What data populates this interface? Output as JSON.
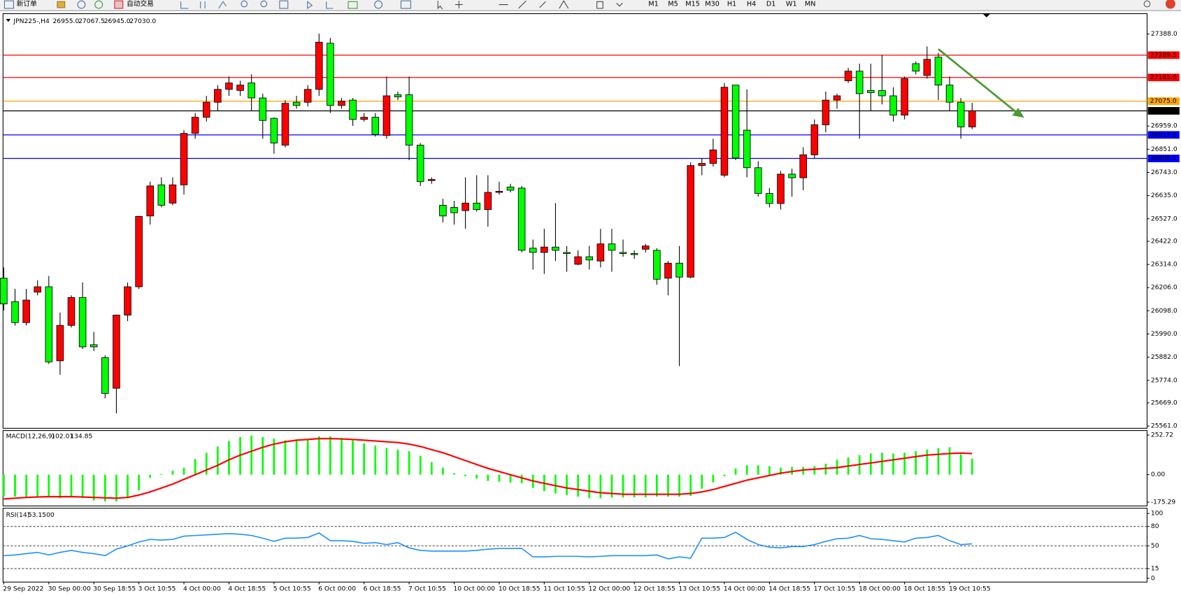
{
  "toolbar": {
    "buttons": [
      "新订单",
      "自动交易"
    ],
    "timeframes": [
      "M1",
      "M5",
      "M15",
      "M30",
      "H1",
      "H4",
      "D1",
      "W1",
      "MN"
    ]
  },
  "chart_data": [
    {
      "type": "candlestick",
      "title": "JPN225-,H4",
      "header_values": [
        {
          "value": 26955,
          "label": "26955.0"
        },
        {
          "value": 27067.5,
          "label": "27067.5"
        },
        {
          "value": 26945,
          "label": "26945.0"
        },
        {
          "value": 27030,
          "label": "27030.0"
        }
      ],
      "categories": [
        "29 Sep 2022",
        null,
        null,
        null,
        "30 Sep 00:00",
        null,
        null,
        null,
        "30 Sep 18:55",
        null,
        null,
        null,
        "3 Oct 10:55",
        null,
        null,
        null,
        "4 Oct 00:00",
        null,
        null,
        null,
        "4 Oct 18:55",
        null,
        null,
        null,
        "5 Oct 10:55",
        null,
        null,
        null,
        "6 Oct 00:00",
        null,
        null,
        null,
        "6 Oct 18:55",
        null,
        null,
        null,
        "7 Oct 10:55",
        null,
        null,
        null,
        "10 Oct 00:00",
        null,
        null,
        null,
        "10 Oct 18:55",
        null,
        null,
        null,
        "11 Oct 10:55",
        null,
        null,
        null,
        "12 Oct 00:00",
        null,
        null,
        null,
        "12 Oct 18:55",
        null,
        null,
        null,
        "13 Oct 10:55",
        null,
        null,
        null,
        "14 Oct 00:00",
        null,
        null,
        null,
        "14 Oct 18:55",
        null,
        null,
        null,
        "17 Oct 10:55",
        null,
        null,
        null,
        "18 Oct 00:00",
        null,
        null,
        null,
        "18 Oct 18:55",
        null,
        null,
        null,
        "19 Oct 10:55",
        null,
        null
      ],
      "open": [
        26250,
        26141,
        26043,
        26185,
        26210,
        25865,
        26030,
        26160,
        25940,
        25880,
        25737,
        26078,
        26210,
        26540,
        26685,
        26600,
        26685,
        26925,
        27000,
        27070,
        27130,
        27125,
        27160,
        27090,
        26995,
        26870,
        27070,
        27070,
        27130,
        27345,
        27055,
        27080,
        26990,
        27000,
        26915,
        27105,
        27105,
        26870,
        26705,
        26590,
        26580,
        26565,
        26600,
        26570,
        26650,
        26675,
        26670,
        26390,
        26370,
        26395,
        26370,
        26315,
        26350,
        26330,
        26410,
        26370,
        26365,
        26385,
        26380,
        26250,
        26320,
        26255,
        26775,
        26785,
        26730,
        27150,
        26940,
        26765,
        26645,
        26598,
        26735,
        26718,
        26825,
        26965,
        27080,
        27170,
        27215,
        27125,
        27125,
        27100,
        27010,
        27250,
        27195,
        27280,
        27150,
        27070,
        26955
      ],
      "high": [
        26300,
        26200,
        26200,
        26240,
        26260,
        26090,
        26170,
        26230,
        26000,
        25890,
        26080,
        26230,
        26540,
        26700,
        26720,
        26720,
        26940,
        27020,
        27100,
        27150,
        27190,
        27170,
        27200,
        27110,
        27000,
        27080,
        27100,
        27150,
        27390,
        27370,
        27090,
        27090,
        27020,
        27020,
        27190,
        27120,
        27190,
        26880,
        26720,
        26620,
        26610,
        26720,
        26730,
        26730,
        26700,
        26690,
        26680,
        26430,
        26480,
        26600,
        26400,
        26380,
        26400,
        26480,
        26480,
        26430,
        26380,
        26410,
        26390,
        26330,
        26400,
        26790,
        26810,
        26900,
        27160,
        27150,
        27130,
        26795,
        26670,
        26750,
        26760,
        26860,
        26990,
        27120,
        27110,
        27230,
        27250,
        27250,
        27290,
        27140,
        27190,
        27260,
        27330,
        27300,
        27190,
        27090,
        27067.5
      ],
      "low": [
        26100,
        26029,
        26030,
        26170,
        25850,
        25800,
        26020,
        25920,
        25910,
        25690,
        25620,
        26050,
        26200,
        26500,
        26580,
        26590,
        26640,
        26900,
        26980,
        27030,
        27100,
        27100,
        27030,
        26900,
        26830,
        26860,
        27040,
        27050,
        27100,
        27020,
        27040,
        26960,
        26980,
        26910,
        26900,
        27080,
        26800,
        26680,
        26690,
        26510,
        26500,
        26480,
        26560,
        26490,
        26640,
        26650,
        26370,
        26290,
        26270,
        26330,
        26280,
        26310,
        26290,
        26300,
        26280,
        26350,
        26340,
        26370,
        26220,
        26170,
        25840,
        26250,
        26730,
        26770,
        26720,
        26800,
        26720,
        26630,
        26580,
        26570,
        26630,
        26660,
        26810,
        26930,
        27040,
        27160,
        26900,
        27030,
        27060,
        26980,
        26990,
        27200,
        27180,
        27080,
        27030,
        26900,
        26945
      ],
      "close": [
        26130,
        26043,
        26148,
        26210,
        25860,
        26030,
        26160,
        25930,
        25930,
        25713,
        26078,
        26210,
        26538,
        26680,
        26590,
        26685,
        26925,
        27000,
        27070,
        27130,
        27160,
        27150,
        27090,
        26985,
        26880,
        27065,
        27055,
        27130,
        27350,
        27055,
        27075,
        26990,
        27000,
        26920,
        27100,
        27095,
        26870,
        26700,
        26710,
        26540,
        26555,
        26600,
        26570,
        26650,
        26655,
        26660,
        26380,
        26370,
        26395,
        26380,
        26365,
        26350,
        26335,
        26410,
        26380,
        26365,
        26360,
        26400,
        26245,
        26320,
        26255,
        26775,
        26785,
        26848,
        27140,
        26810,
        26765,
        26645,
        26598,
        26735,
        26718,
        26825,
        26965,
        27080,
        27100,
        27215,
        27110,
        27115,
        27100,
        27010,
        27180,
        27215,
        27270,
        27150,
        27070,
        26955,
        27030
      ],
      "up_color": "#ff0000",
      "down_color": "#00ff00",
      "ylim": [
        25561,
        27388
      ],
      "yticks": [
        {
          "value": 27388,
          "label": "27388.0"
        },
        {
          "value": 26959,
          "label": "26959.0"
        },
        {
          "value": 26851,
          "label": "26851.0"
        },
        {
          "value": 26743,
          "label": "26743.0"
        },
        {
          "value": 26635,
          "label": "26635.0"
        },
        {
          "value": 26527,
          "label": "26527.0"
        },
        {
          "value": 26422,
          "label": "26422.0"
        },
        {
          "value": 26314,
          "label": "26314.0"
        },
        {
          "value": 26206,
          "label": "26206.0"
        },
        {
          "value": 26098,
          "label": "26098.0"
        },
        {
          "value": 25990,
          "label": "25990.0"
        },
        {
          "value": 25882,
          "label": "25882.0"
        },
        {
          "value": 25774,
          "label": "25774.0"
        },
        {
          "value": 25669,
          "label": "25669.0"
        },
        {
          "value": 25561,
          "label": "25561.0"
        }
      ],
      "hlines": [
        {
          "value": 27289.5,
          "label": "27289.5",
          "color": "#ff0000"
        },
        {
          "value": 27185.6,
          "label": "27185.6",
          "color": "#ff0000"
        },
        {
          "value": 27075,
          "label": "27075.0",
          "color": "#ffa500"
        },
        {
          "value": 27030,
          "label": "27030.0",
          "color": "#000000"
        },
        {
          "value": 26917.8,
          "label": "26917.8",
          "color": "#0000ff"
        },
        {
          "value": 26808.1,
          "label": "26808.1",
          "color": "#0000ff"
        }
      ]
    },
    {
      "type": "macd",
      "title": "MACD(12,26,9)",
      "header_values": [
        {
          "value": 102.01,
          "label": "102.01"
        },
        {
          "value": 134.85,
          "label": "134.85"
        }
      ],
      "ylim": [
        -175.29,
        252.72
      ],
      "yticks": [
        {
          "value": 252.72,
          "label": "252.72"
        },
        {
          "value": 0,
          "label": "0.00"
        },
        {
          "value": -175.29,
          "label": "-175.29"
        }
      ],
      "series": [
        {
          "kind": "bar",
          "color": "#00ff00",
          "values": [
            -140,
            -140,
            -140,
            -140,
            -145,
            -150,
            -145,
            -150,
            -165,
            -170,
            -170,
            -150,
            -100,
            -20,
            5,
            25,
            45,
            100,
            140,
            180,
            215,
            240,
            250,
            240,
            230,
            220,
            215,
            225,
            245,
            245,
            235,
            220,
            200,
            185,
            170,
            160,
            150,
            120,
            80,
            45,
            10,
            -10,
            -25,
            -40,
            -45,
            -50,
            -55,
            -85,
            -105,
            -120,
            -130,
            -140,
            -150,
            -150,
            -145,
            -145,
            -145,
            -145,
            -140,
            -140,
            -140,
            -135,
            -90,
            -50,
            -10,
            40,
            60,
            60,
            55,
            45,
            50,
            50,
            55,
            70,
            95,
            110,
            125,
            135,
            140,
            135,
            140,
            150,
            160,
            170,
            175,
            130,
            102.01
          ]
        },
        {
          "kind": "line",
          "color": "#ff0000",
          "values": [
            -155,
            -150,
            -145,
            -142,
            -140,
            -140,
            -140,
            -142,
            -145,
            -148,
            -150,
            -145,
            -130,
            -110,
            -85,
            -60,
            -30,
            0,
            30,
            60,
            95,
            125,
            150,
            175,
            195,
            210,
            220,
            225,
            230,
            230,
            228,
            225,
            220,
            215,
            210,
            205,
            195,
            180,
            160,
            140,
            115,
            90,
            65,
            40,
            20,
            0,
            -20,
            -40,
            -55,
            -70,
            -85,
            -95,
            -105,
            -115,
            -120,
            -125,
            -125,
            -125,
            -125,
            -125,
            -125,
            -120,
            -110,
            -95,
            -75,
            -55,
            -35,
            -20,
            -5,
            10,
            20,
            30,
            35,
            40,
            45,
            55,
            65,
            75,
            85,
            95,
            105,
            115,
            125,
            130,
            135,
            138,
            134.85
          ]
        }
      ]
    },
    {
      "type": "line",
      "title": "RSI(14)",
      "header_values": [
        {
          "value": 53.15,
          "label": "53.1500"
        }
      ],
      "ylim": [
        0,
        100
      ],
      "yticks": [
        100,
        80,
        50,
        15,
        0
      ],
      "levels": [
        80,
        50,
        15
      ],
      "series": [
        {
          "color": "#1e90ff",
          "values": [
            35,
            36,
            38,
            40,
            36,
            40,
            43,
            40,
            38,
            35,
            45,
            50,
            56,
            60,
            59,
            60,
            65,
            66,
            67,
            68,
            69,
            68,
            66,
            62,
            57,
            62,
            62,
            63,
            70,
            58,
            58,
            57,
            54,
            55,
            52,
            55,
            47,
            43,
            42,
            42,
            42,
            42,
            43,
            45,
            46,
            46,
            46,
            33,
            33,
            34,
            34,
            34,
            33,
            34,
            35,
            35,
            35,
            35,
            36,
            30,
            33,
            31,
            62,
            62,
            63,
            71,
            60,
            52,
            48,
            47,
            49,
            49,
            52,
            57,
            61,
            62,
            66,
            61,
            60,
            58,
            56,
            62,
            63,
            66,
            58,
            52,
            53.15
          ]
        }
      ]
    }
  ]
}
